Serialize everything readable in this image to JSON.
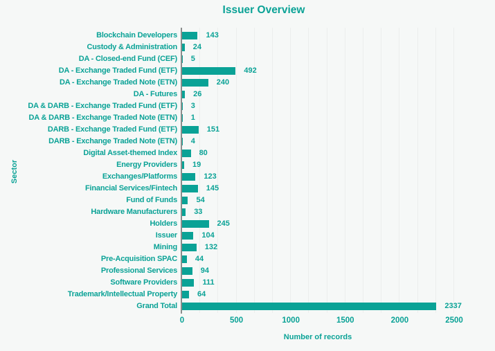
{
  "title": "Issuer Overview",
  "chart_data": {
    "type": "bar",
    "orientation": "horizontal",
    "title": "Issuer Overview",
    "xlabel": "Number of records",
    "ylabel": "Sector",
    "xlim": [
      0,
      2500
    ],
    "x_ticks": [
      0,
      500,
      1000,
      1500,
      2000,
      2500
    ],
    "grid": "vertical, minor gridlines every ~167 units",
    "legend": "none",
    "categories": [
      "Blockchain Developers",
      "Custody & Administration",
      "DA - Closed-end Fund (CEF)",
      "DA - Exchange Traded Fund (ETF)",
      "DA - Exchange Traded Note (ETN)",
      "DA - Futures",
      "DA & DARB - Exchange Traded Fund (ETF)",
      "DA & DARB - Exchange Traded Note (ETN)",
      "DARB - Exchange Traded Fund (ETF)",
      "DARB - Exchange Traded Note (ETN)",
      "Digital Asset-themed Index",
      "Energy Providers",
      "Exchanges/Platforms",
      "Financial Services/Fintech",
      "Fund of Funds",
      "Hardware Manufacturers",
      "Holders",
      "Issuer",
      "Mining",
      "Pre-Acquisition SPAC",
      "Professional Services",
      "Software Providers",
      "Trademark/Intellectual Property",
      "Grand Total"
    ],
    "values": [
      143,
      24,
      5,
      492,
      240,
      26,
      3,
      1,
      151,
      4,
      80,
      19,
      123,
      145,
      54,
      33,
      245,
      104,
      132,
      44,
      94,
      111,
      64,
      2337
    ],
    "bar_color": "#0aa296",
    "text_color": "#0aa296",
    "background_color": "#f6f8f7",
    "axis_line_color": "#8a8d8c",
    "gridline_color": "#eceeed"
  }
}
